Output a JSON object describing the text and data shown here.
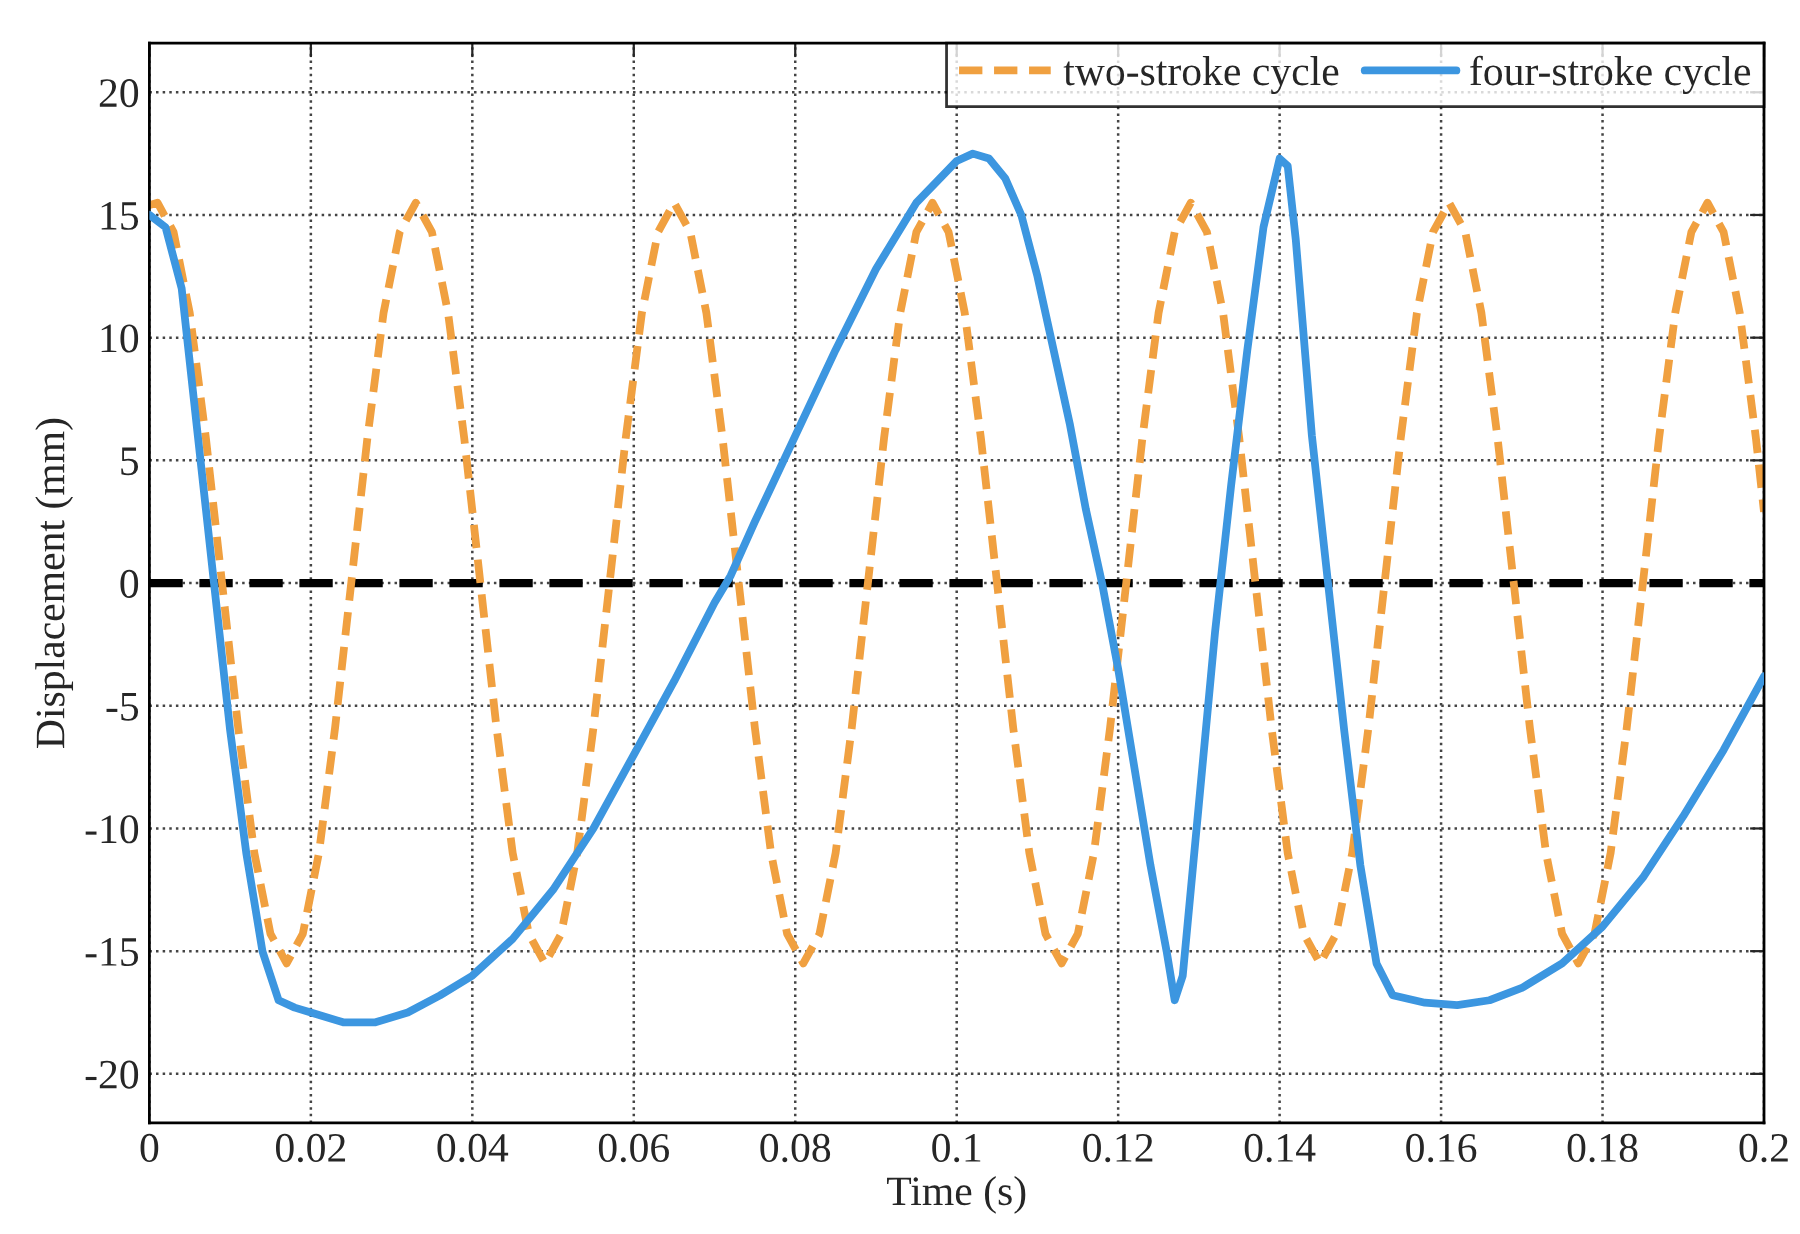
{
  "chart_data": {
    "type": "line",
    "xlabel": "Time (s)",
    "ylabel": "Displacement (mm)",
    "xlim": [
      0,
      0.2
    ],
    "xticks": [
      0,
      0.02,
      0.04,
      0.06,
      0.08,
      0.1,
      0.12,
      0.14,
      0.16,
      0.18,
      0.2
    ],
    "ylim": [
      -22,
      22
    ],
    "yticks": [
      -20,
      -15,
      -10,
      -5,
      0,
      5,
      10,
      15,
      20
    ],
    "grid": true,
    "legend": "top right",
    "ref_lines": [
      {
        "axis": "y",
        "value": 0,
        "color": "#000000",
        "line_style": "dashed"
      }
    ],
    "series": [
      {
        "name": "two-stroke cycle",
        "color": "#f0a040",
        "line_style": "dashed",
        "x": [
          0,
          0.001,
          0.003,
          0.005,
          0.007,
          0.009,
          0.011,
          0.013,
          0.015,
          0.017,
          0.019,
          0.021,
          0.023,
          0.025,
          0.027,
          0.029,
          0.031,
          0.033,
          0.035,
          0.037,
          0.039,
          0.041,
          0.043,
          0.045,
          0.047,
          0.049,
          0.051,
          0.053,
          0.055,
          0.057,
          0.059,
          0.061,
          0.063,
          0.065,
          0.067,
          0.069,
          0.071,
          0.073,
          0.075,
          0.077,
          0.079,
          0.081,
          0.083,
          0.085,
          0.087,
          0.089,
          0.091,
          0.093,
          0.095,
          0.097,
          0.099,
          0.101,
          0.103,
          0.105,
          0.107,
          0.109,
          0.111,
          0.113,
          0.115,
          0.117,
          0.119,
          0.121,
          0.123,
          0.125,
          0.127,
          0.129,
          0.131,
          0.133,
          0.135,
          0.137,
          0.139,
          0.141,
          0.143,
          0.145,
          0.147,
          0.149,
          0.151,
          0.153,
          0.155,
          0.157,
          0.159,
          0.161,
          0.163,
          0.165,
          0.167,
          0.169,
          0.171,
          0.173,
          0.175,
          0.177,
          0.179,
          0.181,
          0.183,
          0.185,
          0.187,
          0.189,
          0.191,
          0.193,
          0.195,
          0.197,
          0.199,
          0.2
        ],
        "values": [
          15.4,
          15.5,
          14.3,
          11.0,
          5.9,
          0,
          -5.9,
          -11.0,
          -14.3,
          -15.5,
          -14.3,
          -11.0,
          -5.9,
          0,
          5.9,
          11.0,
          14.3,
          15.5,
          14.3,
          11.0,
          5.9,
          0,
          -5.9,
          -11.0,
          -14.3,
          -15.5,
          -14.3,
          -11.0,
          -5.9,
          0,
          5.9,
          11.0,
          14.3,
          15.5,
          14.3,
          11.0,
          5.9,
          0,
          -5.9,
          -11.0,
          -14.3,
          -15.5,
          -14.3,
          -11.0,
          -5.9,
          0,
          5.9,
          11.0,
          14.3,
          15.5,
          14.3,
          11.0,
          5.9,
          0,
          -5.9,
          -11.0,
          -14.3,
          -15.5,
          -14.3,
          -11.0,
          -5.9,
          0,
          5.9,
          11.0,
          14.3,
          15.5,
          14.3,
          11.0,
          5.9,
          0,
          -5.9,
          -11.0,
          -14.3,
          -15.5,
          -14.3,
          -11.0,
          -5.9,
          0,
          5.9,
          11.0,
          14.3,
          15.5,
          14.3,
          11.0,
          5.9,
          0,
          -5.9,
          -11.0,
          -14.3,
          -15.5,
          -14.3,
          -11.0,
          -5.9,
          0,
          5.9,
          11.0,
          14.3,
          15.5,
          14.3,
          11.0,
          5.9,
          2.9
        ]
      },
      {
        "name": "four-stroke cycle",
        "color": "#3c96e0",
        "line_style": "solid",
        "x": [
          0,
          0.002,
          0.004,
          0.006,
          0.008,
          0.01,
          0.012,
          0.014,
          0.016,
          0.018,
          0.02,
          0.024,
          0.028,
          0.032,
          0.036,
          0.04,
          0.045,
          0.05,
          0.055,
          0.06,
          0.065,
          0.07,
          0.072,
          0.075,
          0.08,
          0.085,
          0.09,
          0.095,
          0.1,
          0.102,
          0.104,
          0.106,
          0.108,
          0.11,
          0.112,
          0.114,
          0.116,
          0.118,
          0.12,
          0.122,
          0.124,
          0.126,
          0.127,
          0.128,
          0.13,
          0.132,
          0.134,
          0.136,
          0.138,
          0.14,
          0.141,
          0.142,
          0.144,
          0.146,
          0.148,
          0.15,
          0.152,
          0.154,
          0.158,
          0.162,
          0.166,
          0.17,
          0.175,
          0.18,
          0.185,
          0.19,
          0.195,
          0.2
        ],
        "values": [
          15.0,
          14.5,
          12,
          6,
          0,
          -6,
          -11,
          -15,
          -17,
          -17.3,
          -17.5,
          -17.9,
          -17.9,
          -17.5,
          -16.8,
          -16.0,
          -14.5,
          -12.5,
          -10,
          -7,
          -4,
          -0.8,
          0.3,
          2.5,
          6,
          9.5,
          12.8,
          15.5,
          17.2,
          17.5,
          17.3,
          16.5,
          15,
          12.5,
          9.5,
          6.5,
          3,
          0,
          -3.5,
          -7.5,
          -11.5,
          -15,
          -17,
          -16,
          -9,
          -2,
          4,
          9.5,
          14.5,
          17.3,
          17,
          14,
          6,
          0,
          -6,
          -11.5,
          -15.5,
          -16.8,
          -17.1,
          -17.2,
          -17,
          -16.5,
          -15.5,
          -14,
          -12,
          -9.5,
          -6.8,
          -3.8
        ]
      }
    ]
  }
}
